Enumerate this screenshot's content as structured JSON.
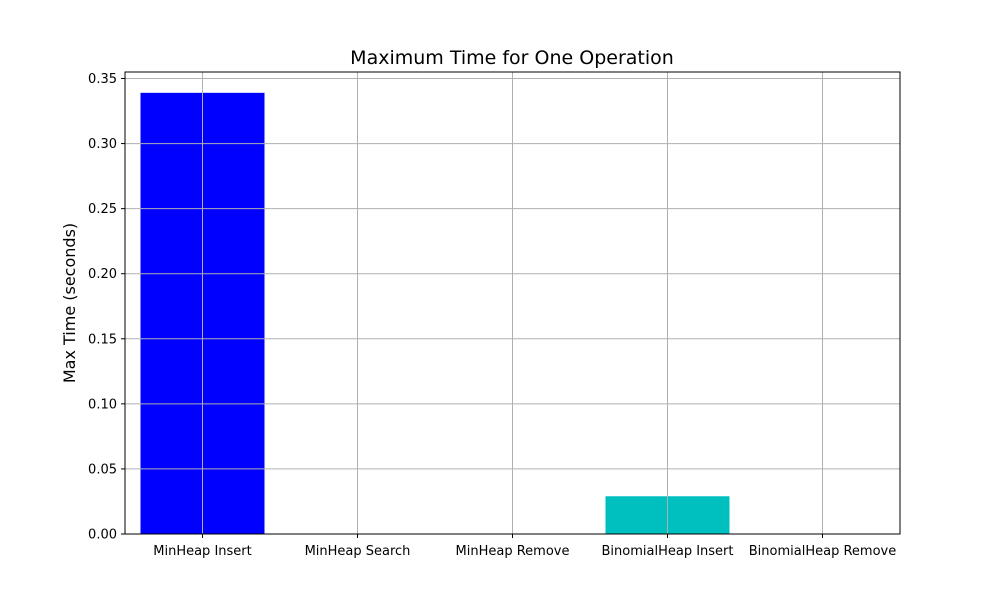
{
  "chart_data": {
    "type": "bar",
    "title": "Maximum Time for One Operation",
    "xlabel": "",
    "ylabel": "Max Time (seconds)",
    "categories": [
      "MinHeap Insert",
      "MinHeap Search",
      "MinHeap Remove",
      "BinomialHeap Insert",
      "BinomialHeap Remove"
    ],
    "values": [
      0.339,
      0.0,
      0.0,
      0.029,
      0.0
    ],
    "bar_colors": [
      "#0000ff",
      "#0000ff",
      "#0000ff",
      "#00bfbf",
      "#00bfbf"
    ],
    "ylim": [
      0,
      0.355
    ],
    "yticks": [
      0.0,
      0.05,
      0.1,
      0.15,
      0.2,
      0.25,
      0.3,
      0.35
    ],
    "ytick_labels": [
      "0.00",
      "0.05",
      "0.10",
      "0.15",
      "0.20",
      "0.25",
      "0.30",
      "0.35"
    ],
    "grid": true,
    "grid_color": "#b0b0b0"
  }
}
